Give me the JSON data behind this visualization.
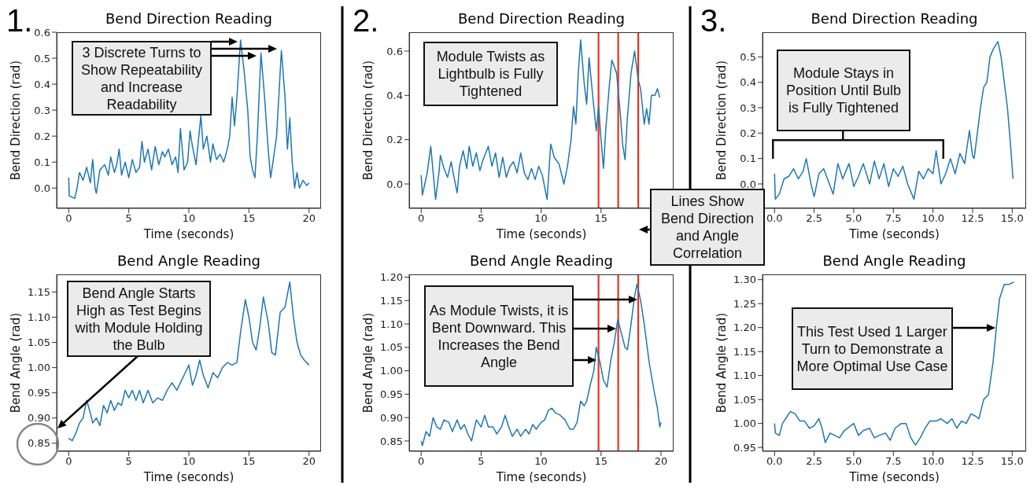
{
  "chart_data": [
    {
      "type": "line",
      "title": "Bend Direction Reading",
      "xlabel": "Time (seconds)",
      "ylabel": "Bend Direction (rad)",
      "color": "#1f77b4",
      "xlim": [
        -1,
        21
      ],
      "ylim": [
        -0.078,
        0.6
      ],
      "xticks": [
        0,
        5,
        10,
        15,
        20
      ],
      "yticks": [
        {
          "value": 0,
          "label": "0.0"
        },
        0.1,
        0.2,
        0.3,
        0.4,
        0.5,
        0.6
      ],
      "annotations": [
        "1.",
        "3 Discrete Turns to Show Repeatability and Increase Readability"
      ],
      "x": [
        0,
        0.05,
        0.5,
        0.7,
        0.9,
        1.2,
        1.5,
        1.8,
        2.0,
        2.2,
        2.3,
        2.6,
        3.0,
        3.3,
        3.5,
        3.8,
        4.0,
        4.2,
        4.4,
        4.7,
        5.0,
        5.3,
        5.6,
        5.9,
        6.1,
        6.3,
        6.6,
        6.9,
        7.2,
        7.5,
        7.8,
        8.0,
        8.3,
        8.6,
        8.9,
        9.1,
        9.3,
        9.6,
        9.9,
        10.1,
        10.3,
        10.6,
        11.0,
        11.2,
        11.5,
        11.8,
        12.0,
        12.3,
        12.6,
        12.9,
        13.2,
        13.4,
        13.6,
        13.8,
        14.0,
        14.3,
        14.6,
        14.9,
        15.1,
        15.3,
        15.5,
        15.7,
        16.0,
        16.3,
        16.6,
        16.8,
        17.0,
        17.3,
        17.7,
        18.0,
        18.2,
        18.4,
        18.6,
        18.8,
        19.0,
        19.2,
        19.5,
        19.8,
        20.0
      ],
      "values": [
        0.04,
        -0.03,
        -0.04,
        0.0,
        0.06,
        0.03,
        0.08,
        0.02,
        0.11,
        0.0,
        -0.02,
        0.07,
        0.09,
        0.05,
        0.12,
        0.06,
        0.09,
        0.15,
        0.05,
        0.1,
        0.04,
        0.11,
        0.06,
        0.08,
        0.18,
        0.1,
        0.15,
        0.07,
        0.16,
        0.09,
        0.14,
        0.12,
        0.15,
        0.09,
        0.12,
        0.06,
        0.23,
        0.07,
        0.1,
        0.22,
        0.16,
        0.09,
        0.28,
        0.15,
        0.2,
        0.1,
        0.17,
        0.11,
        0.13,
        0.1,
        0.15,
        0.2,
        0.35,
        0.24,
        0.35,
        0.57,
        0.45,
        0.3,
        0.12,
        0.07,
        0.04,
        0.2,
        0.52,
        0.35,
        0.15,
        0.04,
        0.1,
        0.2,
        0.53,
        0.35,
        0.15,
        0.27,
        0.1,
        0.0,
        0.06,
        0.0,
        0.03,
        0.01,
        0.02
      ]
    },
    {
      "type": "line",
      "title": "Bend Direction Reading",
      "xlabel": "Time (seconds)",
      "ylabel": "Bend Direction (rad)",
      "color": "#1f77b4",
      "xlim": [
        -1,
        21.05
      ],
      "ylim": [
        -0.11,
        0.685
      ],
      "xticks": [
        0,
        5,
        10,
        15,
        {
          "value": 20,
          "label": null
        }
      ],
      "yticks": [
        {
          "value": 0,
          "label": "0.0"
        },
        0.2,
        0.4,
        0.6
      ],
      "annotations": [
        "2.",
        "Module Twists as Lightbulb is Fully Tightened",
        "Lines Show Bend Direction and Angle Correlation"
      ],
      "ref_lines": [
        {
          "axis": "x",
          "value": 14.79,
          "color": "#e8321e"
        },
        {
          "axis": "x",
          "value": 16.43,
          "color": "#e8321e"
        },
        {
          "axis": "x",
          "value": 18.1,
          "color": "#e8321e"
        }
      ],
      "x": [
        0,
        0.1,
        0.3,
        0.5,
        0.8,
        1.0,
        1.2,
        1.5,
        1.6,
        1.9,
        2.2,
        2.5,
        2.7,
        3.0,
        3.2,
        3.5,
        3.8,
        4.0,
        4.3,
        4.6,
        4.9,
        5.1,
        5.6,
        5.9,
        6.2,
        6.5,
        6.8,
        7.1,
        7.4,
        7.7,
        8.0,
        8.3,
        8.6,
        8.9,
        9.2,
        9.5,
        9.8,
        10.1,
        10.5,
        10.8,
        11.1,
        11.5,
        11.9,
        12.2,
        12.5,
        12.7,
        12.9,
        13.1,
        13.3,
        13.6,
        13.8,
        14.0,
        14.3,
        14.6,
        14.8,
        15.0,
        15.2,
        15.4,
        15.7,
        15.9,
        16.3,
        16.6,
        16.8,
        17.0,
        17.2,
        17.5,
        17.8,
        18.1,
        18.3,
        18.6,
        18.8,
        19.0,
        19.2,
        19.5,
        19.7,
        19.9
      ],
      "values": [
        0.04,
        -0.05,
        0.0,
        0.05,
        0.17,
        0.05,
        -0.07,
        0.06,
        0.13,
        0.07,
        0.03,
        0.1,
        0.04,
        -0.04,
        0.08,
        0.15,
        0.07,
        0.17,
        0.08,
        0.14,
        0.06,
        0.1,
        0.17,
        0.08,
        0.14,
        0.03,
        0.12,
        0.03,
        0.08,
        0.1,
        0.05,
        0.14,
        0.05,
        0.02,
        0.07,
        0.02,
        0.08,
        0.04,
        -0.07,
        0.18,
        0.12,
        0.09,
        0.0,
        0.08,
        0.2,
        0.35,
        0.27,
        0.5,
        0.65,
        0.45,
        0.36,
        0.57,
        0.4,
        0.24,
        0.35,
        0.2,
        0.07,
        0.25,
        0.45,
        0.56,
        0.5,
        0.32,
        0.18,
        0.11,
        0.3,
        0.5,
        0.6,
        0.47,
        0.43,
        0.27,
        0.34,
        0.27,
        0.4,
        0.4,
        0.43,
        0.39
      ]
    },
    {
      "type": "line",
      "title": "Bend Direction Reading",
      "xlabel": "Time (seconds)",
      "ylabel": "Bend Direction (rad)",
      "color": "#1f77b4",
      "xlim": [
        -0.76,
        15.88
      ],
      "ylim": [
        -0.096,
        0.597
      ],
      "xticks": [
        {
          "value": 0,
          "label": "0.0"
        },
        2.5,
        {
          "value": 5,
          "label": "5.0"
        },
        7.5,
        {
          "value": 10,
          "label": "10.0"
        },
        12.5,
        {
          "value": 15,
          "label": "15.0"
        }
      ],
      "yticks": [
        {
          "value": 0,
          "label": "0.0"
        },
        0.1,
        0.2,
        0.3,
        0.4,
        0.5
      ],
      "annotations": [
        "3.",
        "Module Stays in Position Until Bulb is Fully Tightened"
      ],
      "x": [
        0,
        0.05,
        0.3,
        0.6,
        0.9,
        1.2,
        1.5,
        1.8,
        2.0,
        2.3,
        2.5,
        2.8,
        3.1,
        3.4,
        3.7,
        4.0,
        4.3,
        4.7,
        5.0,
        5.3,
        5.6,
        6.0,
        6.3,
        6.6,
        6.9,
        7.2,
        7.5,
        7.8,
        8.1,
        8.4,
        8.8,
        9.1,
        9.4,
        9.7,
        10.0,
        10.2,
        10.5,
        10.8,
        11.1,
        11.4,
        11.7,
        12.0,
        12.3,
        12.5,
        12.6,
        12.8,
        13.0,
        13.2,
        13.4,
        13.6,
        13.8,
        14.0,
        14.1,
        14.3,
        14.5,
        14.7,
        14.9,
        15.05
      ],
      "values": [
        0.04,
        -0.06,
        -0.04,
        0.02,
        0.03,
        0.06,
        0.02,
        0.05,
        0.1,
        0.0,
        -0.05,
        0.04,
        0.06,
        0.01,
        -0.04,
        0.08,
        0.02,
        0.08,
        -0.01,
        0.03,
        0.08,
        0.0,
        0.09,
        0.02,
        0.08,
        -0.01,
        0.06,
        0.03,
        0.07,
        0.0,
        -0.06,
        0.05,
        0.02,
        0.06,
        0.04,
        0.13,
        0.0,
        0.04,
        0.1,
        0.04,
        0.12,
        0.08,
        0.21,
        0.11,
        0.1,
        0.2,
        0.3,
        0.38,
        0.4,
        0.5,
        0.53,
        0.55,
        0.56,
        0.5,
        0.4,
        0.3,
        0.15,
        0.02
      ]
    },
    {
      "type": "line",
      "title": "Bend Angle Reading",
      "xlabel": "Time (seconds)",
      "ylabel": "Bend Angle (rad)",
      "color": "#1f77b4",
      "xlim": [
        -1,
        21
      ],
      "ylim": [
        0.834,
        1.185
      ],
      "xticks": [
        0,
        5,
        10,
        15,
        20
      ],
      "yticks": [
        0.85,
        {
          "value": 0.9,
          "label": "0.90"
        },
        0.95,
        {
          "value": 1,
          "label": "1.00"
        },
        1.05,
        {
          "value": 1.1,
          "label": "1.10"
        },
        1.15
      ],
      "annotations": [
        "Bend Angle Starts High as Test Begins with Module Holding the Bulb"
      ],
      "x": [
        0,
        0.3,
        0.6,
        0.9,
        1.2,
        1.5,
        1.8,
        2.0,
        2.3,
        2.6,
        2.9,
        3.2,
        3.5,
        3.8,
        4.1,
        4.4,
        4.7,
        5.0,
        5.3,
        5.6,
        5.9,
        6.2,
        6.6,
        7.0,
        7.4,
        7.8,
        8.2,
        8.6,
        9.0,
        9.4,
        9.7,
        10.0,
        10.3,
        10.6,
        10.9,
        11.2,
        11.6,
        12.0,
        12.4,
        12.8,
        13.2,
        13.6,
        14.0,
        14.3,
        14.7,
        15.0,
        15.3,
        15.6,
        15.9,
        16.2,
        16.6,
        16.9,
        17.2,
        17.6,
        18.0,
        18.4,
        18.7,
        19.0,
        19.3,
        19.6,
        20.0
      ],
      "values": [
        0.86,
        0.855,
        0.87,
        0.89,
        0.9,
        0.935,
        0.91,
        0.89,
        0.9,
        0.885,
        0.925,
        0.91,
        0.935,
        0.915,
        0.93,
        0.925,
        0.955,
        0.94,
        0.955,
        0.935,
        0.955,
        0.93,
        0.955,
        0.93,
        0.94,
        0.935,
        0.955,
        0.97,
        0.955,
        0.975,
        0.99,
        1.005,
        0.965,
        0.985,
        1.015,
        0.985,
        0.96,
        0.99,
        0.98,
        1.0,
        1.01,
        1.005,
        1.01,
        1.07,
        1.135,
        1.1,
        1.05,
        1.035,
        1.08,
        1.14,
        1.09,
        1.03,
        1.025,
        1.11,
        1.12,
        1.17,
        1.1,
        1.05,
        1.025,
        1.015,
        1.005
      ]
    },
    {
      "type": "line",
      "title": "Bend Angle Reading",
      "xlabel": "Time (seconds)",
      "ylabel": "Bend Angle (rad)",
      "color": "#1f77b4",
      "xlim": [
        -1,
        21.05
      ],
      "ylim": [
        0.828,
        1.206
      ],
      "xticks": [
        0,
        5,
        10,
        15,
        20
      ],
      "yticks": [
        0.85,
        {
          "value": 0.9,
          "label": "0.90"
        },
        0.95,
        {
          "value": 1,
          "label": "1.00"
        },
        1.05,
        {
          "value": 1.1,
          "label": "1.10"
        },
        1.15,
        {
          "value": 1.2,
          "label": "1.20"
        }
      ],
      "annotations": [
        "As Module Twists, it is Bent Downward. This Increases the Bend Angle"
      ],
      "ref_lines": [
        {
          "axis": "x",
          "value": 14.79,
          "color": "#e8321e"
        },
        {
          "axis": "x",
          "value": 16.43,
          "color": "#e8321e"
        },
        {
          "axis": "x",
          "value": 18.1,
          "color": "#e8321e"
        }
      ],
      "x": [
        0,
        0.1,
        0.4,
        0.7,
        1.0,
        1.3,
        1.6,
        1.9,
        2.3,
        2.6,
        3.0,
        3.3,
        3.6,
        3.9,
        4.2,
        4.6,
        5.0,
        5.3,
        5.6,
        6.0,
        6.3,
        6.7,
        7.0,
        7.3,
        7.6,
        8.0,
        8.3,
        8.7,
        9.0,
        9.3,
        9.6,
        10.0,
        10.3,
        10.6,
        10.9,
        11.2,
        11.6,
        12.0,
        12.4,
        12.7,
        13.0,
        13.3,
        13.6,
        13.8,
        14.1,
        14.4,
        14.6,
        14.9,
        15.2,
        15.5,
        15.8,
        16.1,
        16.4,
        16.7,
        17.0,
        17.2,
        17.5,
        17.8,
        18.0,
        18.3,
        18.6,
        19.0,
        19.4,
        19.7,
        19.9,
        20.0
      ],
      "values": [
        0.85,
        0.84,
        0.87,
        0.86,
        0.9,
        0.88,
        0.875,
        0.895,
        0.89,
        0.87,
        0.895,
        0.875,
        0.885,
        0.865,
        0.85,
        0.895,
        0.88,
        0.905,
        0.88,
        0.88,
        0.865,
        0.88,
        0.905,
        0.88,
        0.86,
        0.875,
        0.86,
        0.875,
        0.865,
        0.885,
        0.875,
        0.89,
        0.895,
        0.915,
        0.92,
        0.91,
        0.905,
        0.895,
        0.875,
        0.875,
        0.89,
        0.935,
        0.925,
        0.935,
        0.97,
        1.0,
        1.05,
        1.02,
        0.98,
        0.965,
        1.02,
        1.06,
        1.11,
        1.08,
        1.05,
        1.045,
        1.1,
        1.16,
        1.185,
        1.15,
        1.1,
        1.02,
        0.96,
        0.92,
        0.88,
        0.89
      ]
    },
    {
      "type": "line",
      "title": "Bend Angle Reading",
      "xlabel": "Time (seconds)",
      "ylabel": "Bend Angle (rad)",
      "color": "#1f77b4",
      "xlim": [
        -0.76,
        15.88
      ],
      "ylim": [
        0.942,
        1.311
      ],
      "xticks": [
        {
          "value": 0,
          "label": "0.0"
        },
        2.5,
        {
          "value": 5,
          "label": "5.0"
        },
        7.5,
        {
          "value": 10,
          "label": "10.0"
        },
        12.5,
        {
          "value": 15,
          "label": "15.0"
        }
      ],
      "yticks": [
        0.95,
        {
          "value": 1,
          "label": "1.00"
        },
        1.05,
        {
          "value": 1.1,
          "label": "1.10"
        },
        1.15,
        {
          "value": 1.2,
          "label": "1.20"
        },
        1.25,
        {
          "value": 1.3,
          "label": "1.30"
        }
      ],
      "annotations": [
        "This Test Used 1 Larger Turn to Demonstrate a More Optimal Use Case"
      ],
      "x": [
        0,
        0.05,
        0.3,
        0.5,
        0.8,
        1.0,
        1.3,
        1.6,
        1.9,
        2.2,
        2.5,
        2.8,
        3.0,
        3.2,
        3.5,
        3.8,
        4.1,
        4.4,
        4.8,
        5.0,
        5.3,
        5.6,
        6.0,
        6.3,
        6.6,
        7.0,
        7.3,
        7.6,
        8.0,
        8.3,
        8.6,
        8.9,
        9.2,
        9.5,
        9.8,
        10.2,
        10.5,
        10.9,
        11.2,
        11.5,
        11.8,
        12.1,
        12.4,
        12.7,
        12.9,
        13.2,
        13.5,
        13.8,
        14.0,
        14.2,
        14.5,
        14.8,
        15.1
      ],
      "values": [
        1.0,
        0.98,
        0.975,
        1.0,
        1.015,
        1.025,
        1.02,
        1.005,
        1.005,
        0.99,
        0.995,
        1.01,
        0.99,
        0.96,
        0.98,
        0.975,
        0.97,
        0.985,
        0.995,
        1.0,
        0.975,
        0.985,
        0.99,
        0.97,
        0.975,
        0.98,
        0.965,
        0.99,
        1.0,
        1.0,
        0.97,
        0.955,
        0.97,
        0.99,
        1.005,
        1.005,
        1.01,
        1.0,
        1.01,
        0.99,
        1.005,
        1.0,
        1.02,
        1.015,
        1.01,
        1.05,
        1.06,
        1.13,
        1.2,
        1.26,
        1.29,
        1.29,
        1.295
      ]
    }
  ]
}
